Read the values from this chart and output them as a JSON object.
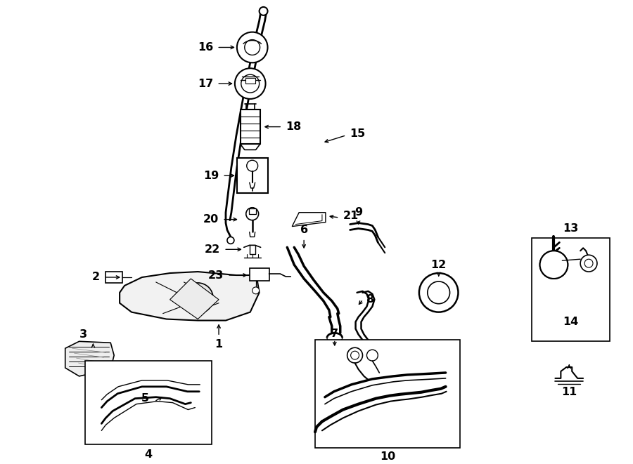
{
  "bg_color": "#ffffff",
  "line_color": "#000000",
  "figsize": [
    9.0,
    6.61
  ],
  "dpi": 100,
  "label_fontsize": 11.5
}
